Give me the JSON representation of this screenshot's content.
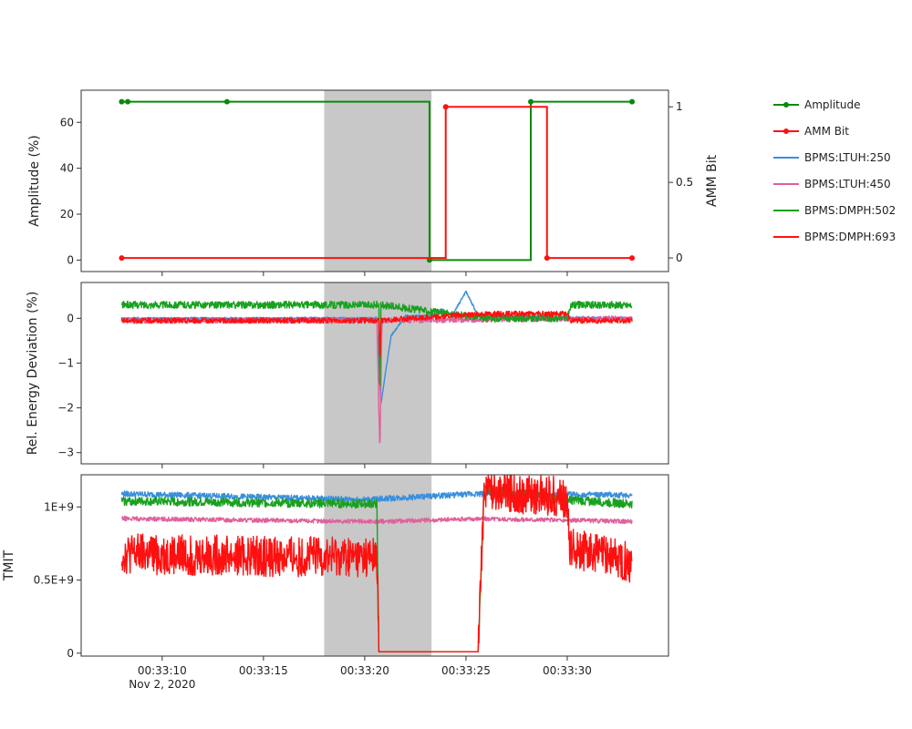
{
  "chart_data": [
    {
      "type": "line",
      "panel": "top",
      "xaxis": {
        "range": [
          "00:33:06",
          "00:33:35"
        ],
        "ticks": [
          "00:33:10",
          "00:33:15",
          "00:33:20",
          "00:33:25",
          "00:33:30"
        ],
        "date_label": "Nov 2, 2020"
      },
      "shaded_region": {
        "x0": "00:33:18.0",
        "x1": "00:33:23.3",
        "color": "#c8c8c8"
      },
      "y_left": {
        "label": "Amplitude (%)",
        "range": [
          -5,
          74
        ],
        "ticks": [
          0,
          20,
          40,
          60
        ]
      },
      "y_right": {
        "label": "AMM Bit",
        "range": [
          -0.09,
          1.11
        ],
        "ticks": [
          0,
          0.5,
          1
        ],
        "tick_labels": [
          "0",
          "0.5",
          "1"
        ]
      },
      "series": [
        {
          "name": "Amplitude",
          "color": "#0a8a0a",
          "axis": "left",
          "step": true,
          "points": [
            [
              "00:33:08.0",
              69
            ],
            [
              "00:33:08.3",
              69
            ],
            [
              "00:33:13.2",
              69
            ],
            [
              "00:33:23.2",
              0
            ],
            [
              "00:33:28.2",
              69
            ],
            [
              "00:33:33.2",
              69
            ]
          ]
        },
        {
          "name": "AMM Bit",
          "color": "#ff1010",
          "axis": "right",
          "step": true,
          "points": [
            [
              "00:33:08.0",
              0
            ],
            [
              "00:33:24.0",
              1
            ],
            [
              "00:33:29.0",
              0
            ],
            [
              "00:33:33.2",
              0
            ]
          ]
        }
      ]
    },
    {
      "type": "line",
      "panel": "middle",
      "shaded_region": {
        "x0": "00:33:18.0",
        "x1": "00:33:23.3",
        "color": "#c8c8c8"
      },
      "y_left": {
        "label": "Rel. Energy Deviation (%)",
        "range": [
          -3.25,
          0.8
        ],
        "ticks": [
          0,
          -1,
          -2,
          -3
        ],
        "tick_labels": [
          "0",
          "−1",
          "−2",
          "−3"
        ]
      },
      "series": [
        {
          "name": "BPMS:LTUH:250",
          "color": "#3a8fdc",
          "points": [
            [
              "00:33:08.0",
              0.0
            ],
            [
              "00:33:20.6",
              0.0
            ],
            [
              "00:33:20.8",
              -1.9
            ],
            [
              "00:33:21.3",
              -0.4
            ],
            [
              "00:33:22.0",
              0.05
            ],
            [
              "00:33:23.3",
              0.05
            ],
            [
              "00:33:23.8",
              0.2
            ],
            [
              "00:33:24.3",
              0.05
            ],
            [
              "00:33:25.0",
              0.6
            ],
            [
              "00:33:25.6",
              0.05
            ],
            [
              "00:33:33.2",
              0.0
            ]
          ]
        },
        {
          "name": "BPMS:LTUH:450",
          "color": "#e0609c",
          "points": [
            [
              "00:33:08.0",
              -0.05
            ],
            [
              "00:33:20.6",
              -0.05
            ],
            [
              "00:33:20.75",
              -3.0
            ],
            [
              "00:33:20.85",
              -0.05
            ],
            [
              "00:33:33.2",
              0.0
            ]
          ]
        },
        {
          "name": "BPMS:DMPH:502",
          "color": "#1aa020",
          "points": [
            [
              "00:33:08.0",
              0.3
            ],
            [
              "00:33:20.7",
              0.3
            ],
            [
              "00:33:20.75",
              -1.9
            ],
            [
              "00:33:20.8",
              0.3
            ],
            [
              "00:33:25.9",
              0.0
            ],
            [
              "00:33:30.0",
              0.0
            ],
            [
              "00:33:30.2",
              0.3
            ],
            [
              "00:33:33.2",
              0.3
            ]
          ]
        },
        {
          "name": "BPMS:DMPH:693",
          "color": "#ff1010",
          "points": [
            [
              "00:33:08.0",
              -0.05
            ],
            [
              "00:33:20.7",
              -0.05
            ],
            [
              "00:33:20.75",
              -1.0
            ],
            [
              "00:33:20.8",
              -0.05
            ],
            [
              "00:33:25.8",
              0.1
            ],
            [
              "00:33:30.0",
              0.1
            ],
            [
              "00:33:30.2",
              -0.05
            ],
            [
              "00:33:33.2",
              -0.05
            ]
          ]
        }
      ]
    },
    {
      "type": "line",
      "panel": "bottom",
      "shaded_region": {
        "x0": "00:33:18.0",
        "x1": "00:33:23.3",
        "color": "#c8c8c8"
      },
      "y_left": {
        "label": "TMIT",
        "range": [
          -0.02,
          1.22
        ],
        "ticks": [
          0,
          0.5,
          1
        ],
        "tick_labels": [
          "0",
          "0.5E+9",
          "1E+9"
        ]
      },
      "series": [
        {
          "name": "BPMS:LTUH:250",
          "color": "#3a8fdc",
          "points": [
            [
              "00:33:08.0",
              1.09
            ],
            [
              "00:33:20.0",
              1.05
            ],
            [
              "00:33:25.5",
              1.09
            ],
            [
              "00:33:33.2",
              1.08
            ]
          ]
        },
        {
          "name": "BPMS:LTUH:450",
          "color": "#e0609c",
          "points": [
            [
              "00:33:08.0",
              0.92
            ],
            [
              "00:33:20.0",
              0.9
            ],
            [
              "00:33:20.7",
              0.9
            ],
            [
              "00:33:25.6",
              0.92
            ],
            [
              "00:33:33.2",
              0.9
            ]
          ]
        },
        {
          "name": "BPMS:DMPH:502",
          "color": "#1aa020",
          "points": [
            [
              "00:33:08.0",
              1.04
            ],
            [
              "00:33:20.6",
              1.02
            ],
            [
              "00:33:20.7",
              0.01
            ],
            [
              "00:33:25.6",
              0.01
            ],
            [
              "00:33:25.9",
              1.12
            ],
            [
              "00:33:30.0",
              1.05
            ],
            [
              "00:33:33.2",
              1.02
            ]
          ]
        },
        {
          "name": "BPMS:DMPH:693",
          "color": "#ff1010",
          "points": [
            [
              "00:33:08.0",
              0.68
            ],
            [
              "00:33:20.6",
              0.65
            ],
            [
              "00:33:20.7",
              0.01
            ],
            [
              "00:33:25.6",
              0.01
            ],
            [
              "00:33:25.9",
              1.12
            ],
            [
              "00:33:30.0",
              1.06
            ],
            [
              "00:33:30.1",
              0.72
            ],
            [
              "00:33:33.2",
              0.62
            ]
          ]
        }
      ]
    }
  ],
  "legend": [
    {
      "label": "Amplitude",
      "color": "#0a8a0a",
      "marker": true
    },
    {
      "label": "AMM Bit",
      "color": "#ff1010",
      "marker": true
    },
    {
      "label": "BPMS:LTUH:250",
      "color": "#3a8fdc",
      "marker": false
    },
    {
      "label": "BPMS:LTUH:450",
      "color": "#e0609c",
      "marker": false
    },
    {
      "label": "BPMS:DMPH:502",
      "color": "#1aa020",
      "marker": false
    },
    {
      "label": "BPMS:DMPH:693",
      "color": "#ff1010",
      "marker": false
    }
  ]
}
